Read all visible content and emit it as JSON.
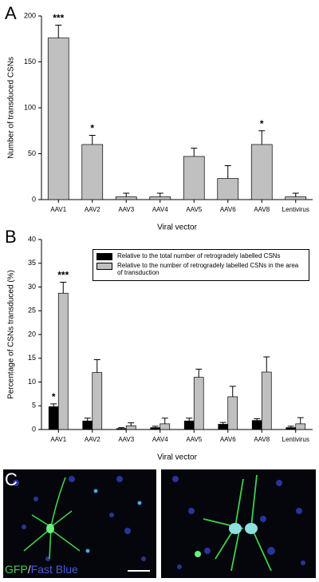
{
  "chart_data": [
    {
      "type": "bar",
      "panel": "A",
      "ylabel": "Number of transduced CSNs",
      "xlabel": "Viral vector",
      "categories": [
        "AAV1",
        "AAV2",
        "AAV3",
        "AAV4",
        "AAV5",
        "AAV6",
        "AAV8",
        "Lentivirus"
      ],
      "series": [
        {
          "color": "#c0c0c0",
          "values": [
            176,
            60,
            3,
            3,
            47,
            23,
            60,
            3
          ],
          "errors": [
            14,
            10,
            4,
            4,
            9,
            14,
            15,
            4
          ],
          "significance": [
            "***",
            "*",
            null,
            null,
            null,
            null,
            "*",
            null
          ]
        }
      ],
      "ylim": [
        0,
        200
      ],
      "yticks": [
        0,
        50,
        100,
        150,
        200
      ],
      "grid": false
    },
    {
      "type": "bar",
      "panel": "B",
      "ylabel": "Percentage of CSNs transduced (%)",
      "xlabel": "Viral vector",
      "categories": [
        "AAV1",
        "AAV2",
        "AAV3",
        "AAV4",
        "AAV5",
        "AAV6",
        "AAV8",
        "Lentivirus"
      ],
      "series": [
        {
          "name": "Relative to the total number of retrogradely labelled CSNs",
          "color": "#000000",
          "values": [
            4.8,
            1.8,
            0.2,
            0.4,
            1.8,
            1.1,
            1.9,
            0.4
          ],
          "errors": [
            0.6,
            0.6,
            0.2,
            0.3,
            0.6,
            0.4,
            0.4,
            0.3
          ],
          "significance": [
            "*",
            null,
            null,
            null,
            null,
            null,
            null,
            null
          ]
        },
        {
          "name": "Relative to the number of retrogradely labelled CSNs in the area of transduction",
          "color": "#c0c0c0",
          "values": [
            28.7,
            12,
            0.8,
            1.2,
            11,
            6.9,
            12.1,
            1.2
          ],
          "errors": [
            2.3,
            2.7,
            0.6,
            1.2,
            1.7,
            2.2,
            3.2,
            1.3
          ],
          "significance": [
            "***",
            null,
            null,
            null,
            null,
            null,
            null,
            null
          ]
        }
      ],
      "ylim": [
        0,
        40
      ],
      "yticks": [
        0,
        5,
        10,
        15,
        20,
        25,
        30,
        35,
        40
      ],
      "grid": false,
      "legend": "upper right"
    }
  ],
  "panel_c": {
    "panel": "C",
    "caption": [
      {
        "text": "GFP",
        "color": "#3fcf4a"
      },
      {
        "text": "/",
        "color": "#dddddd"
      },
      {
        "text": "Fast Blue",
        "color": "#4a5ad8"
      }
    ]
  }
}
